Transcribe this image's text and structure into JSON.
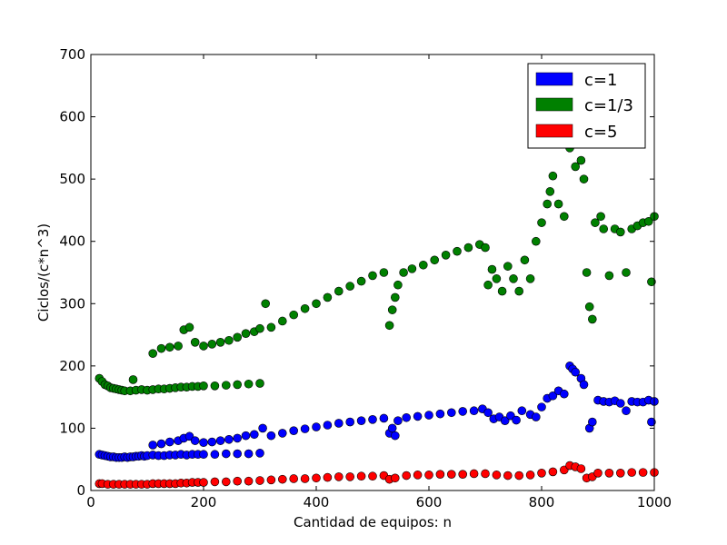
{
  "chart_data": {
    "type": "scatter",
    "title": "",
    "xlabel": "Cantidad de equipos: n",
    "ylabel": "Ciclos/(c*n^3)",
    "xlim": [
      0,
      1000
    ],
    "ylim": [
      0,
      700
    ],
    "xticks": [
      "0",
      "200",
      "400",
      "600",
      "800",
      "1000"
    ],
    "yticks": [
      "0",
      "100",
      "200",
      "300",
      "400",
      "500",
      "600",
      "700"
    ],
    "grid": false,
    "legend_position": "top-right",
    "series": [
      {
        "name": "c=1",
        "color": "#0000ff",
        "points": [
          [
            15,
            58
          ],
          [
            20,
            57
          ],
          [
            25,
            56
          ],
          [
            30,
            55
          ],
          [
            35,
            54
          ],
          [
            40,
            54
          ],
          [
            45,
            53
          ],
          [
            50,
            53
          ],
          [
            55,
            53
          ],
          [
            60,
            54
          ],
          [
            65,
            53
          ],
          [
            70,
            54
          ],
          [
            75,
            54
          ],
          [
            80,
            55
          ],
          [
            85,
            55
          ],
          [
            90,
            56
          ],
          [
            95,
            55
          ],
          [
            100,
            56
          ],
          [
            110,
            57
          ],
          [
            120,
            56
          ],
          [
            130,
            56
          ],
          [
            140,
            57
          ],
          [
            150,
            57
          ],
          [
            160,
            58
          ],
          [
            170,
            57
          ],
          [
            180,
            58
          ],
          [
            190,
            58
          ],
          [
            200,
            58
          ],
          [
            220,
            58
          ],
          [
            240,
            59
          ],
          [
            260,
            59
          ],
          [
            280,
            59
          ],
          [
            300,
            60
          ],
          [
            110,
            73
          ],
          [
            125,
            75
          ],
          [
            140,
            78
          ],
          [
            155,
            80
          ],
          [
            165,
            84
          ],
          [
            175,
            87
          ],
          [
            185,
            80
          ],
          [
            200,
            77
          ],
          [
            215,
            78
          ],
          [
            230,
            80
          ],
          [
            245,
            82
          ],
          [
            260,
            84
          ],
          [
            275,
            88
          ],
          [
            290,
            90
          ],
          [
            305,
            100
          ],
          [
            320,
            88
          ],
          [
            340,
            92
          ],
          [
            360,
            96
          ],
          [
            380,
            99
          ],
          [
            400,
            102
          ],
          [
            420,
            105
          ],
          [
            440,
            108
          ],
          [
            460,
            110
          ],
          [
            480,
            112
          ],
          [
            500,
            114
          ],
          [
            520,
            116
          ],
          [
            530,
            92
          ],
          [
            535,
            100
          ],
          [
            540,
            88
          ],
          [
            545,
            112
          ],
          [
            560,
            117
          ],
          [
            580,
            119
          ],
          [
            600,
            121
          ],
          [
            620,
            123
          ],
          [
            640,
            125
          ],
          [
            660,
            127
          ],
          [
            680,
            128
          ],
          [
            695,
            131
          ],
          [
            705,
            125
          ],
          [
            715,
            115
          ],
          [
            725,
            118
          ],
          [
            735,
            112
          ],
          [
            745,
            120
          ],
          [
            755,
            113
          ],
          [
            765,
            128
          ],
          [
            780,
            122
          ],
          [
            790,
            118
          ],
          [
            800,
            134
          ],
          [
            810,
            148
          ],
          [
            820,
            152
          ],
          [
            830,
            160
          ],
          [
            840,
            155
          ],
          [
            850,
            200
          ],
          [
            855,
            195
          ],
          [
            860,
            190
          ],
          [
            870,
            180
          ],
          [
            875,
            170
          ],
          [
            885,
            100
          ],
          [
            890,
            110
          ],
          [
            900,
            145
          ],
          [
            910,
            143
          ],
          [
            920,
            142
          ],
          [
            930,
            144
          ],
          [
            940,
            140
          ],
          [
            950,
            128
          ],
          [
            960,
            143
          ],
          [
            970,
            142
          ],
          [
            980,
            142
          ],
          [
            990,
            145
          ],
          [
            995,
            110
          ],
          [
            1000,
            143
          ]
        ]
      },
      {
        "name": "c=1/3",
        "color": "#008000",
        "points": [
          [
            15,
            180
          ],
          [
            20,
            175
          ],
          [
            25,
            170
          ],
          [
            30,
            168
          ],
          [
            35,
            165
          ],
          [
            40,
            164
          ],
          [
            45,
            163
          ],
          [
            50,
            162
          ],
          [
            55,
            161
          ],
          [
            60,
            160
          ],
          [
            70,
            160
          ],
          [
            80,
            161
          ],
          [
            90,
            162
          ],
          [
            100,
            161
          ],
          [
            110,
            162
          ],
          [
            120,
            163
          ],
          [
            130,
            163
          ],
          [
            140,
            164
          ],
          [
            150,
            165
          ],
          [
            160,
            166
          ],
          [
            170,
            166
          ],
          [
            180,
            167
          ],
          [
            190,
            167
          ],
          [
            200,
            168
          ],
          [
            220,
            168
          ],
          [
            240,
            169
          ],
          [
            260,
            170
          ],
          [
            280,
            171
          ],
          [
            300,
            172
          ],
          [
            75,
            178
          ],
          [
            110,
            220
          ],
          [
            125,
            228
          ],
          [
            140,
            230
          ],
          [
            155,
            232
          ],
          [
            165,
            258
          ],
          [
            175,
            262
          ],
          [
            185,
            238
          ],
          [
            200,
            232
          ],
          [
            215,
            235
          ],
          [
            230,
            238
          ],
          [
            245,
            241
          ],
          [
            260,
            246
          ],
          [
            275,
            252
          ],
          [
            290,
            255
          ],
          [
            300,
            260
          ],
          [
            310,
            300
          ],
          [
            320,
            262
          ],
          [
            340,
            272
          ],
          [
            360,
            282
          ],
          [
            380,
            292
          ],
          [
            400,
            300
          ],
          [
            420,
            310
          ],
          [
            440,
            320
          ],
          [
            460,
            328
          ],
          [
            480,
            336
          ],
          [
            500,
            345
          ],
          [
            520,
            350
          ],
          [
            530,
            265
          ],
          [
            535,
            290
          ],
          [
            540,
            310
          ],
          [
            545,
            330
          ],
          [
            555,
            350
          ],
          [
            570,
            356
          ],
          [
            590,
            362
          ],
          [
            610,
            370
          ],
          [
            630,
            378
          ],
          [
            650,
            384
          ],
          [
            670,
            390
          ],
          [
            690,
            395
          ],
          [
            700,
            390
          ],
          [
            705,
            330
          ],
          [
            712,
            355
          ],
          [
            720,
            340
          ],
          [
            730,
            320
          ],
          [
            740,
            360
          ],
          [
            750,
            340
          ],
          [
            760,
            320
          ],
          [
            770,
            370
          ],
          [
            780,
            340
          ],
          [
            790,
            400
          ],
          [
            800,
            430
          ],
          [
            810,
            460
          ],
          [
            815,
            480
          ],
          [
            820,
            505
          ],
          [
            830,
            460
          ],
          [
            840,
            440
          ],
          [
            850,
            550
          ],
          [
            855,
            580
          ],
          [
            860,
            520
          ],
          [
            870,
            530
          ],
          [
            875,
            500
          ],
          [
            880,
            350
          ],
          [
            885,
            295
          ],
          [
            890,
            275
          ],
          [
            895,
            430
          ],
          [
            905,
            440
          ],
          [
            910,
            420
          ],
          [
            920,
            345
          ],
          [
            930,
            420
          ],
          [
            940,
            415
          ],
          [
            950,
            350
          ],
          [
            960,
            420
          ],
          [
            970,
            425
          ],
          [
            980,
            430
          ],
          [
            990,
            432
          ],
          [
            995,
            335
          ],
          [
            1000,
            440
          ]
        ]
      },
      {
        "name": "c=5",
        "color": "#ff0000",
        "points": [
          [
            15,
            11
          ],
          [
            20,
            11
          ],
          [
            30,
            10
          ],
          [
            40,
            10
          ],
          [
            50,
            10
          ],
          [
            60,
            10
          ],
          [
            70,
            10
          ],
          [
            80,
            10
          ],
          [
            90,
            10
          ],
          [
            100,
            10
          ],
          [
            110,
            11
          ],
          [
            120,
            11
          ],
          [
            130,
            11
          ],
          [
            140,
            11
          ],
          [
            150,
            11
          ],
          [
            160,
            12
          ],
          [
            170,
            12
          ],
          [
            180,
            13
          ],
          [
            190,
            13
          ],
          [
            200,
            13
          ],
          [
            220,
            14
          ],
          [
            240,
            14
          ],
          [
            260,
            15
          ],
          [
            280,
            15
          ],
          [
            300,
            16
          ],
          [
            320,
            17
          ],
          [
            340,
            18
          ],
          [
            360,
            19
          ],
          [
            380,
            19
          ],
          [
            400,
            20
          ],
          [
            420,
            21
          ],
          [
            440,
            22
          ],
          [
            460,
            22
          ],
          [
            480,
            23
          ],
          [
            500,
            23
          ],
          [
            520,
            24
          ],
          [
            530,
            18
          ],
          [
            540,
            20
          ],
          [
            560,
            24
          ],
          [
            580,
            25
          ],
          [
            600,
            25
          ],
          [
            620,
            26
          ],
          [
            640,
            26
          ],
          [
            660,
            26
          ],
          [
            680,
            27
          ],
          [
            700,
            27
          ],
          [
            720,
            25
          ],
          [
            740,
            24
          ],
          [
            760,
            24
          ],
          [
            780,
            25
          ],
          [
            800,
            28
          ],
          [
            820,
            30
          ],
          [
            840,
            33
          ],
          [
            850,
            40
          ],
          [
            860,
            38
          ],
          [
            870,
            35
          ],
          [
            880,
            20
          ],
          [
            890,
            22
          ],
          [
            900,
            28
          ],
          [
            920,
            28
          ],
          [
            940,
            28
          ],
          [
            960,
            29
          ],
          [
            980,
            29
          ],
          [
            1000,
            29
          ]
        ]
      }
    ]
  }
}
